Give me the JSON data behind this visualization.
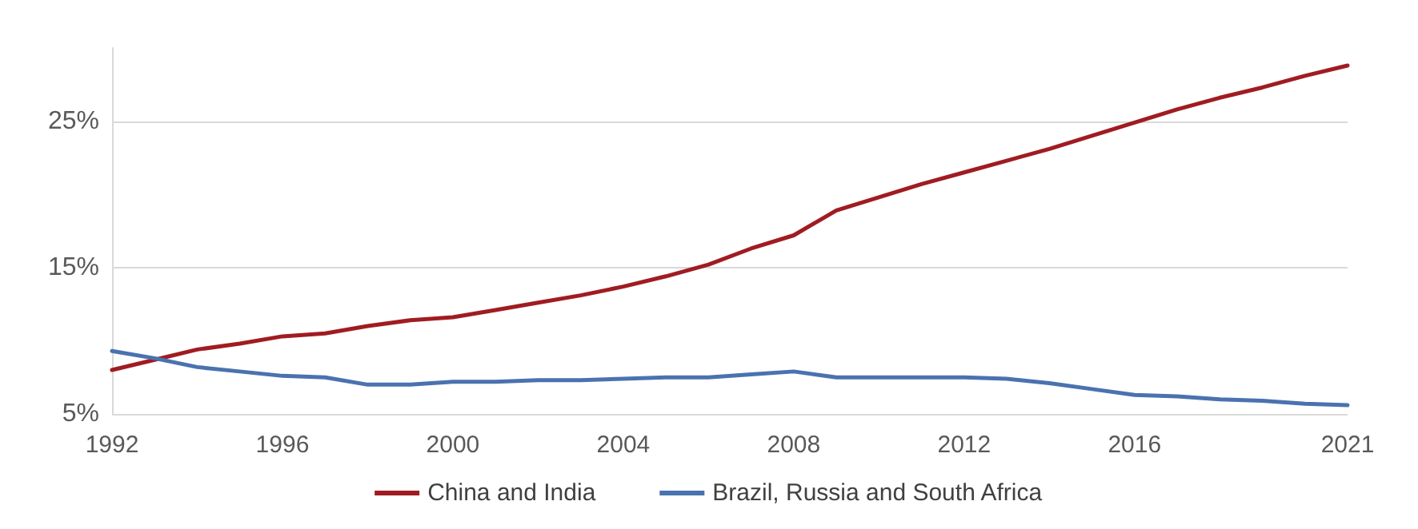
{
  "chart_data": {
    "type": "line",
    "x": [
      1992,
      1993,
      1994,
      1995,
      1996,
      1997,
      1998,
      1999,
      2000,
      2001,
      2002,
      2003,
      2004,
      2005,
      2006,
      2007,
      2008,
      2009,
      2010,
      2011,
      2012,
      2013,
      2014,
      2015,
      2016,
      2017,
      2018,
      2019,
      2020,
      2021
    ],
    "series": [
      {
        "name": "China and India",
        "color": "#a01c22",
        "values": [
          8.0,
          8.7,
          9.4,
          9.8,
          10.3,
          10.5,
          11.0,
          11.4,
          11.6,
          12.1,
          12.6,
          13.1,
          13.7,
          14.4,
          15.2,
          16.3,
          17.2,
          18.9,
          19.8,
          20.7,
          21.5,
          22.3,
          23.1,
          24.0,
          24.9,
          25.8,
          26.6,
          27.3,
          28.1,
          28.8
        ]
      },
      {
        "name": "Brazil, Russia and South Africa",
        "color": "#4a72b0",
        "values": [
          9.3,
          8.8,
          8.2,
          7.9,
          7.6,
          7.5,
          7.0,
          7.0,
          7.2,
          7.2,
          7.3,
          7.3,
          7.4,
          7.5,
          7.5,
          7.7,
          7.9,
          7.5,
          7.5,
          7.5,
          7.5,
          7.4,
          7.1,
          6.7,
          6.3,
          6.2,
          6.0,
          5.9,
          5.7,
          5.6
        ]
      }
    ],
    "xlim": [
      1992,
      2021
    ],
    "xticks": [
      1992,
      1996,
      2000,
      2004,
      2008,
      2012,
      2016,
      2021
    ],
    "ylim": [
      5,
      30
    ],
    "yticks": [
      {
        "value": 5,
        "label": "5%"
      },
      {
        "value": 15,
        "label": "15%"
      },
      {
        "value": 25,
        "label": "25%"
      }
    ],
    "grid": "y",
    "legend": "bottom",
    "marker": "none",
    "line_style": "solid"
  }
}
